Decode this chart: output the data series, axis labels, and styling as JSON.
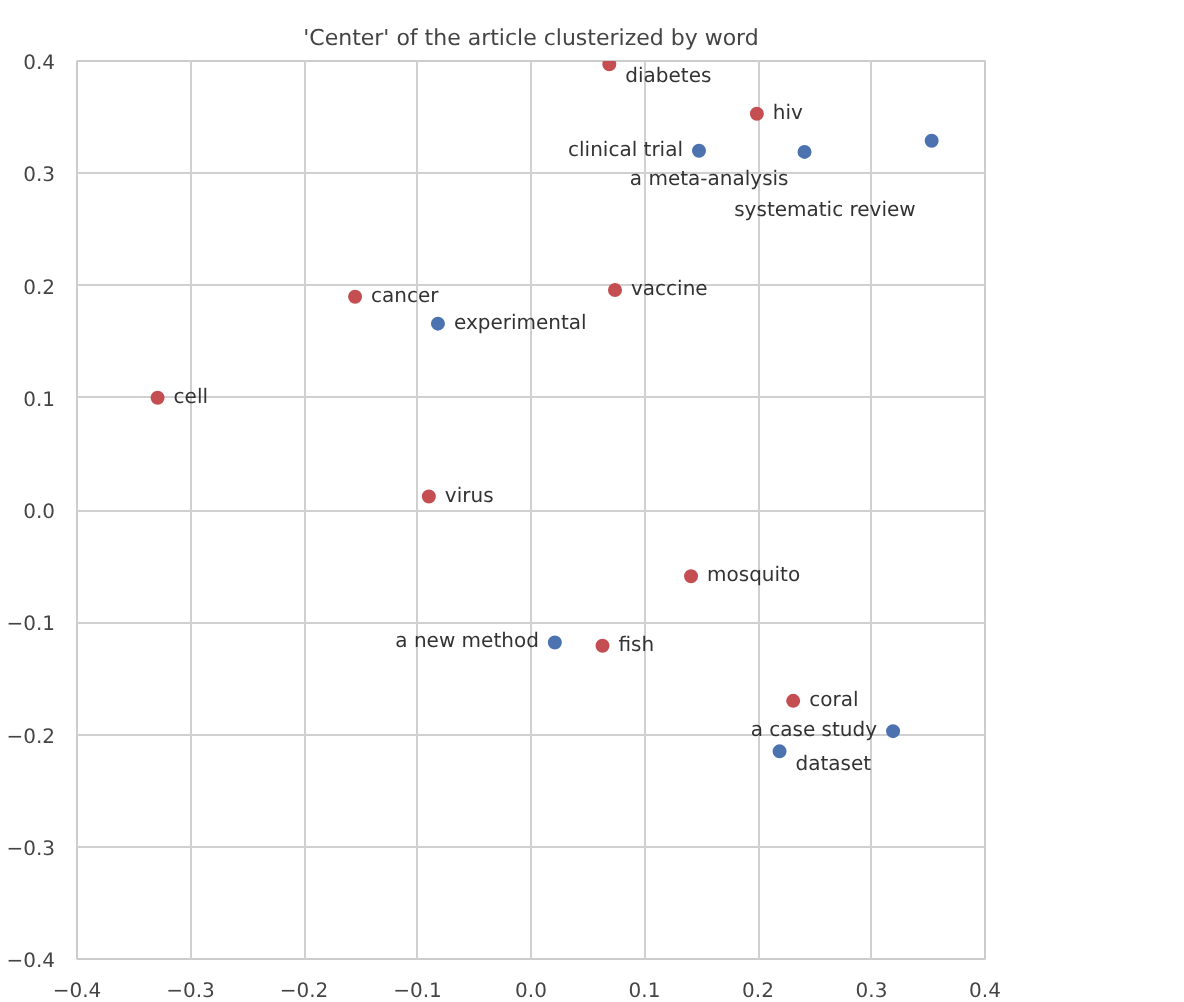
{
  "chart_data": {
    "type": "scatter",
    "title": "'Center' of the article clusterized by word",
    "marker": "circle",
    "grid": true,
    "xlim": [
      -0.4,
      0.4
    ],
    "ylim": [
      -0.4,
      0.4
    ],
    "xticks": [
      {
        "value": -0.4,
        "label": "−0.4"
      },
      {
        "value": -0.3,
        "label": "−0.3"
      },
      {
        "value": -0.2,
        "label": "−0.2"
      },
      {
        "value": -0.1,
        "label": "−0.1"
      },
      "0.0",
      0.1,
      0.2,
      0.3,
      0.4
    ],
    "yticks": [
      {
        "value": -0.4,
        "label": "−0.4"
      },
      {
        "value": -0.3,
        "label": "−0.3"
      },
      {
        "value": -0.2,
        "label": "−0.2"
      },
      {
        "value": -0.1,
        "label": "−0.1"
      },
      {
        "value": 0,
        "label": "0.0"
      },
      0.1,
      0.2,
      0.3,
      0.4
    ],
    "series": [
      {
        "color": "#c44e52",
        "x": [
          0.069,
          0.199,
          -0.155,
          0.074,
          -0.329,
          -0.09,
          0.141,
          0.063,
          0.231
        ],
        "values": [
          0.397,
          0.353,
          0.19,
          0.196,
          0.1,
          0.012,
          -0.059,
          -0.121,
          -0.17
        ],
        "value_labels": [
          "diabetes",
          "hiv",
          "cancer",
          "vaccine",
          "cell",
          "virus",
          "mosquito",
          "fish",
          "coral"
        ]
      },
      {
        "color": "#4c72b0",
        "x": [
          0.148,
          0.241,
          0.353,
          -0.082,
          0.021,
          0.319,
          0.219
        ],
        "values": [
          0.32,
          0.319,
          0.329,
          0.166,
          -0.118,
          -0.197,
          -0.215
        ],
        "value_labels": [
          "clinical trial",
          "a meta-analysis",
          "systematic review",
          "experimental",
          "a new method",
          "a case study",
          "dataset"
        ]
      }
    ]
  }
}
